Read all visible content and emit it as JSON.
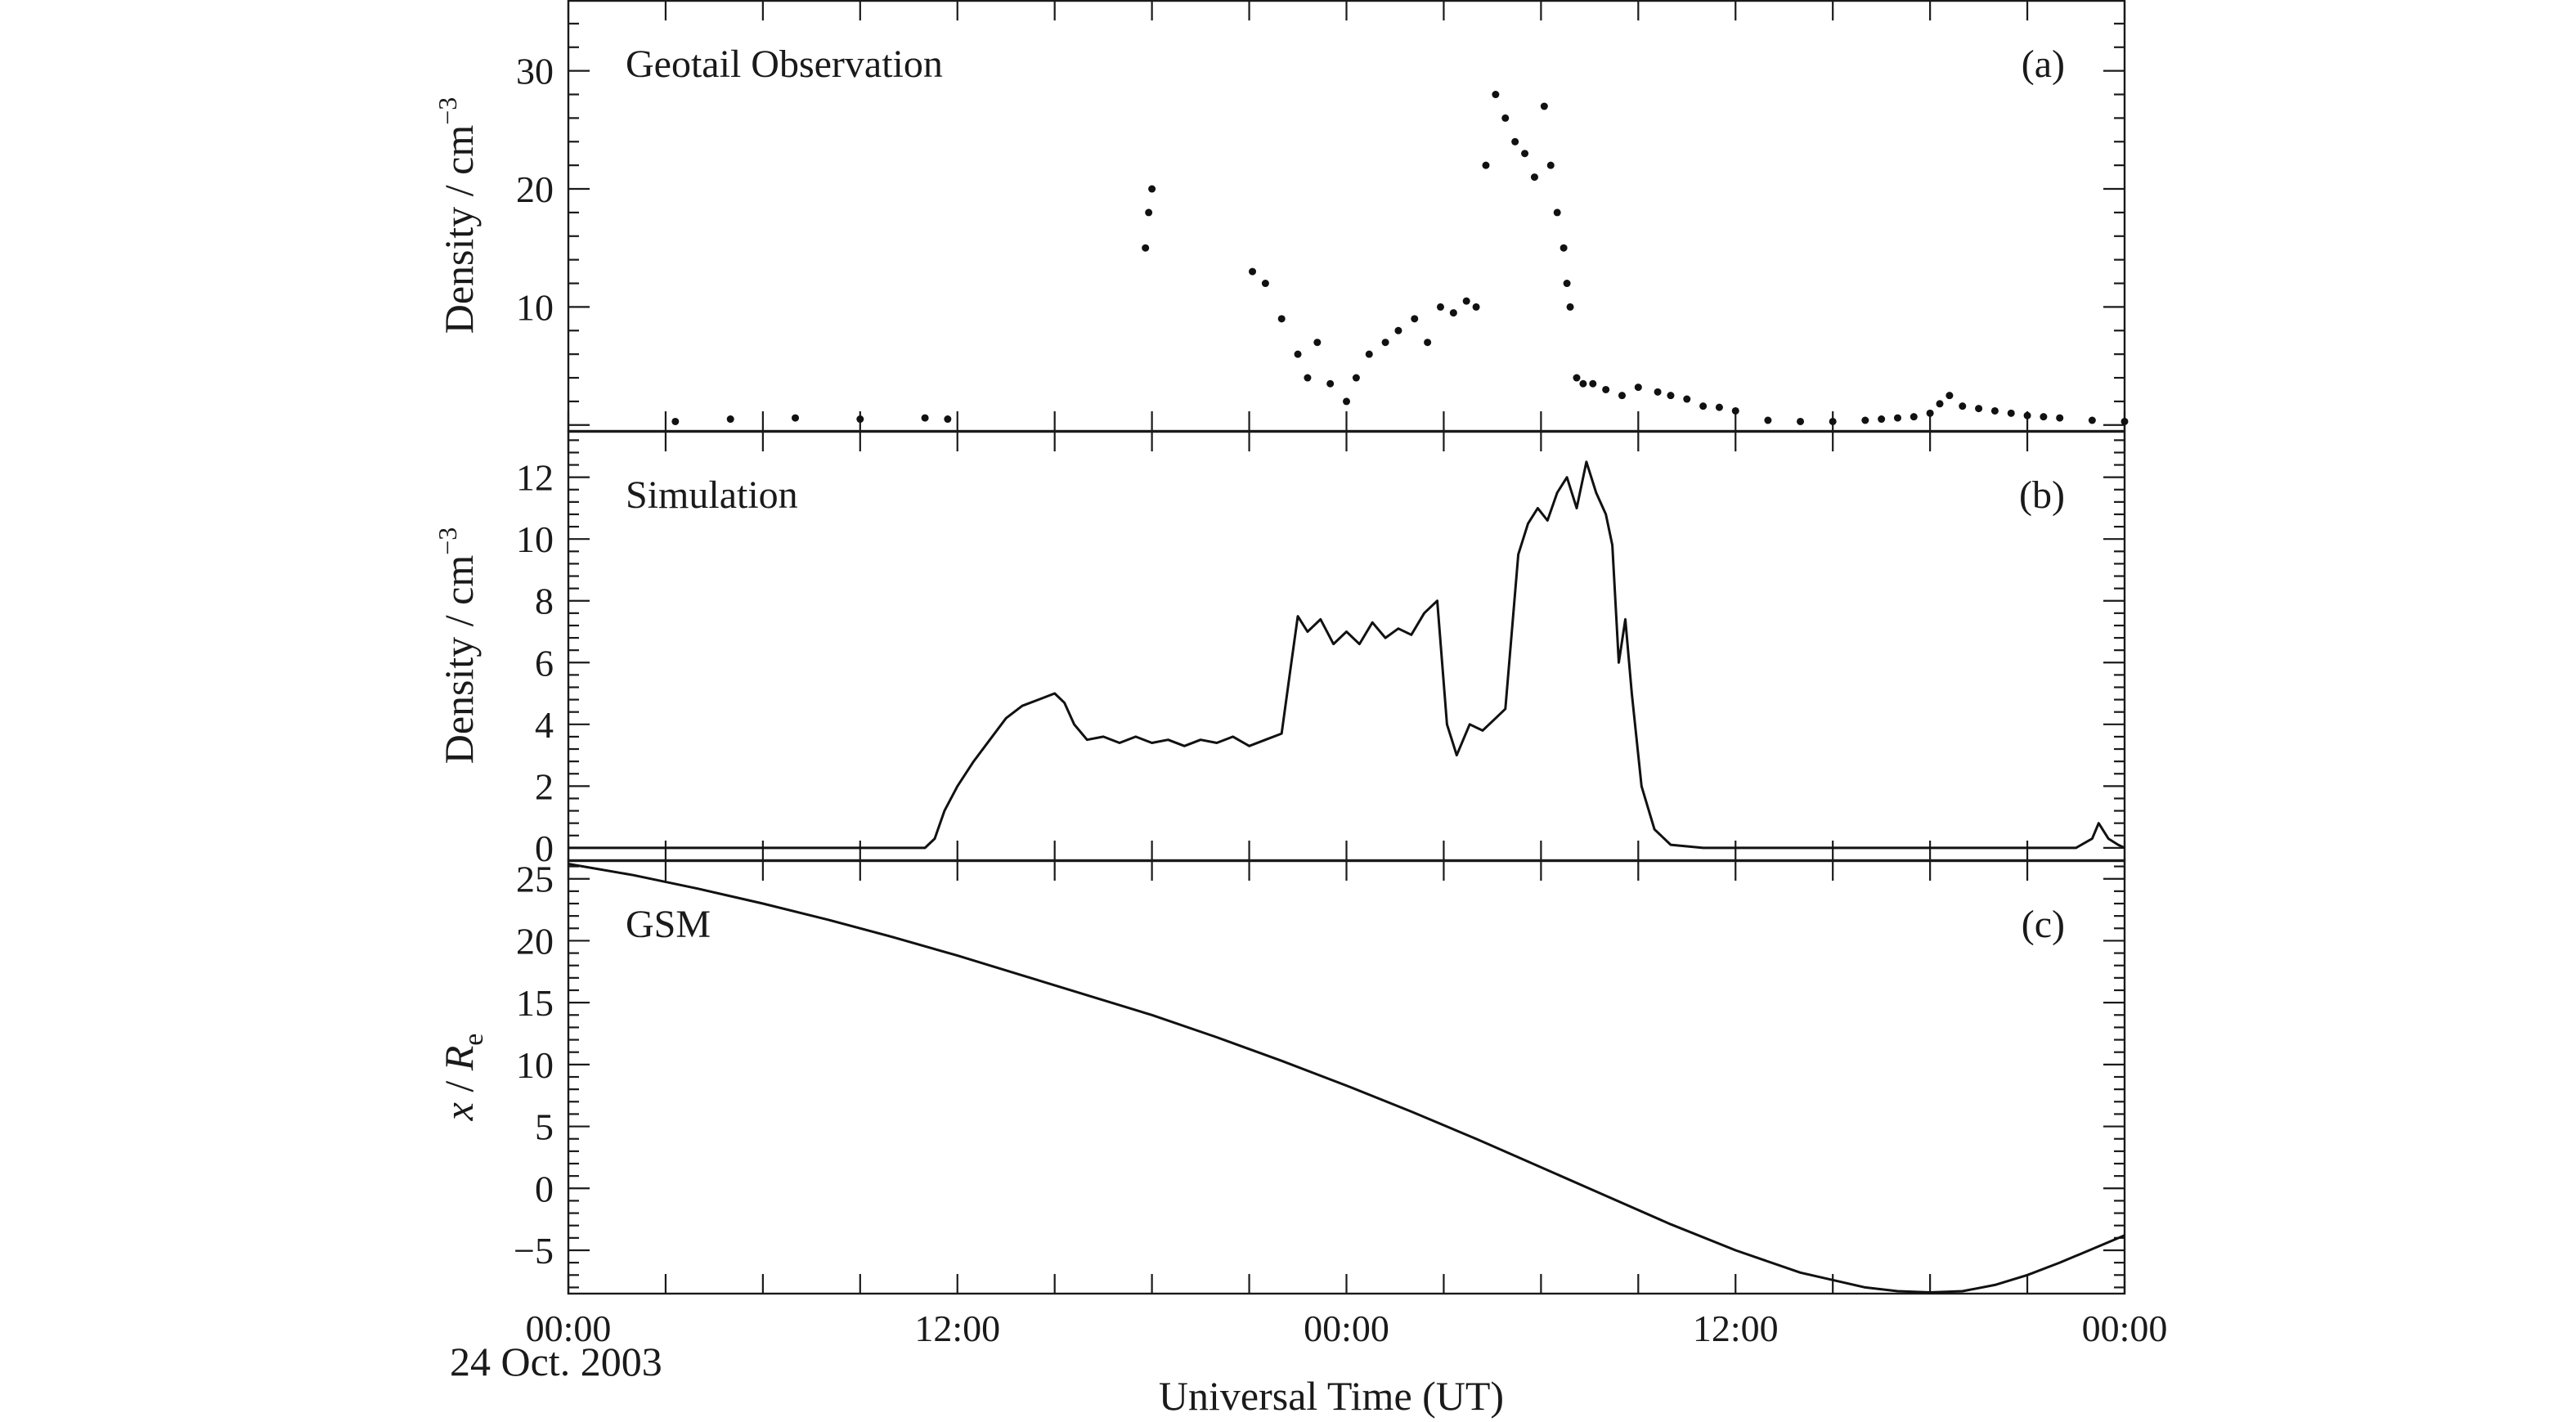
{
  "chart_data": [
    {
      "type": "scatter",
      "panel": "(a)",
      "title": "Geotail Observation",
      "xlabel": "Universal Time (UT)",
      "ylabel": "Density / cm",
      "ylabel_sup": "−3",
      "xlim": [
        0,
        48
      ],
      "ylim": [
        -0.5,
        36
      ],
      "yticks": [
        "10",
        "20",
        "30"
      ],
      "ytick_values": [
        10,
        20,
        30
      ],
      "x_tick_values": [
        0,
        3,
        6,
        9,
        12,
        15,
        18,
        21,
        24,
        27,
        30,
        33,
        36,
        39,
        42,
        45,
        48
      ],
      "series": [
        {
          "x": [
            3.3,
            5,
            7,
            9,
            11,
            11.7,
            17.8,
            17.9,
            18,
            21.1,
            21.5,
            22,
            22.5,
            22.8,
            23.1,
            23.5,
            24,
            24.3,
            24.7,
            25.2,
            25.6,
            26.1,
            26.5,
            26.9,
            27.3,
            27.7,
            28,
            28.3,
            28.6,
            28.9,
            29.2,
            29.5,
            29.8,
            30.1,
            30.3,
            30.5,
            30.7,
            30.8,
            30.9,
            31.1,
            31.3,
            31.6,
            32,
            32.5,
            33,
            33.6,
            34,
            34.5,
            35,
            35.5,
            36,
            37,
            38,
            39,
            40,
            40.5,
            41,
            41.5,
            42,
            42.3,
            42.6,
            43,
            43.5,
            44,
            44.5,
            45,
            45.5,
            46,
            47,
            48
          ],
          "y": [
            0.3,
            0.5,
            0.6,
            0.5,
            0.6,
            0.5,
            15,
            18,
            20,
            13,
            12,
            9,
            6,
            4,
            7,
            3.5,
            2,
            4,
            6,
            7,
            8,
            9,
            7,
            10,
            9.5,
            10.5,
            10,
            22,
            28,
            26,
            24,
            23,
            21,
            27,
            22,
            18,
            15,
            12,
            10,
            4,
            3.5,
            3.5,
            3,
            2.5,
            3.2,
            2.8,
            2.5,
            2.2,
            1.6,
            1.5,
            1.2,
            0.4,
            0.3,
            0.3,
            0.4,
            0.5,
            0.6,
            0.7,
            1,
            1.8,
            2.5,
            1.6,
            1.4,
            1.2,
            1,
            0.8,
            0.7,
            0.6,
            0.4,
            0.3
          ]
        }
      ]
    },
    {
      "type": "line",
      "panel": "(b)",
      "title": "Simulation",
      "xlabel": "Universal Time (UT)",
      "ylabel": "Density / cm",
      "ylabel_sup": "−3",
      "xlim": [
        0,
        48
      ],
      "ylim": [
        -0.4,
        13.5
      ],
      "yticks": [
        "0",
        "2",
        "4",
        "6",
        "8",
        "10",
        "12"
      ],
      "ytick_values": [
        0,
        2,
        4,
        6,
        8,
        10,
        12
      ],
      "x_tick_values": [
        0,
        3,
        6,
        9,
        12,
        15,
        18,
        21,
        24,
        27,
        30,
        33,
        36,
        39,
        42,
        45,
        48
      ],
      "series": [
        {
          "x": [
            0,
            11,
            11.3,
            11.6,
            12,
            12.5,
            13,
            13.5,
            14,
            14.5,
            15,
            15.3,
            15.6,
            16,
            16.5,
            17,
            17.5,
            18,
            18.5,
            19,
            19.5,
            20,
            20.5,
            21,
            21.5,
            22,
            22.3,
            22.5,
            22.8,
            23.2,
            23.6,
            24,
            24.4,
            24.8,
            25.2,
            25.6,
            26,
            26.4,
            26.8,
            27.1,
            27.4,
            27.8,
            28.2,
            28.6,
            28.9,
            29.1,
            29.3,
            29.6,
            29.9,
            30.2,
            30.5,
            30.8,
            31.1,
            31.4,
            31.7,
            32,
            32.2,
            32.4,
            32.6,
            32.8,
            33.1,
            33.5,
            34,
            35,
            36,
            40,
            45,
            46.5,
            47,
            47.2,
            47.5,
            47.8,
            48
          ],
          "y": [
            0,
            0,
            0.3,
            1.2,
            2,
            2.8,
            3.5,
            4.2,
            4.6,
            4.8,
            5,
            4.7,
            4,
            3.5,
            3.6,
            3.4,
            3.6,
            3.4,
            3.5,
            3.3,
            3.5,
            3.4,
            3.6,
            3.3,
            3.5,
            3.7,
            6,
            7.5,
            7,
            7.4,
            6.6,
            7,
            6.6,
            7.3,
            6.8,
            7.1,
            6.9,
            7.6,
            8,
            4,
            3,
            4,
            3.8,
            4.2,
            4.5,
            7,
            9.5,
            10.5,
            11,
            10.6,
            11.5,
            12,
            11,
            12.5,
            11.5,
            10.8,
            9.8,
            6,
            7.4,
            5,
            2,
            0.6,
            0.1,
            0,
            0,
            0,
            0,
            0,
            0.3,
            0.8,
            0.3,
            0.1,
            0
          ]
        }
      ]
    },
    {
      "type": "line",
      "panel": "(c)",
      "title": "GSM",
      "xlabel": "Universal Time (UT)",
      "ylabel": "x / R",
      "ylabel_sub": "e",
      "xlim": [
        0,
        48
      ],
      "ylim": [
        -8.5,
        26.5
      ],
      "yticks": [
        "−5",
        "0",
        "5",
        "10",
        "15",
        "20",
        "25"
      ],
      "ytick_values": [
        -5,
        0,
        5,
        10,
        15,
        20,
        25
      ],
      "x_tick_values": [
        0,
        3,
        6,
        9,
        12,
        15,
        18,
        21,
        24,
        27,
        30,
        33,
        36,
        39,
        42,
        45,
        48
      ],
      "series": [
        {
          "x": [
            0,
            2,
            4,
            6,
            8,
            10,
            12,
            14,
            16,
            18,
            20,
            22,
            24,
            26,
            28,
            30,
            32,
            34,
            36,
            38,
            40,
            41,
            42,
            43,
            44,
            45,
            46,
            47,
            48
          ],
          "y": [
            26.2,
            25.3,
            24.2,
            23,
            21.7,
            20.3,
            18.8,
            17.2,
            15.6,
            14,
            12.2,
            10.3,
            8.3,
            6.2,
            4,
            1.7,
            -0.6,
            -2.9,
            -5,
            -6.8,
            -8,
            -8.3,
            -8.4,
            -8.3,
            -7.8,
            -7,
            -6,
            -4.9,
            -3.8
          ]
        }
      ]
    }
  ],
  "x_axis": {
    "tick_labels": [
      "00:00",
      "12:00",
      "00:00",
      "12:00",
      "00:00"
    ],
    "tick_label_values": [
      0,
      12,
      24,
      36,
      48
    ],
    "date_label": "24 Oct. 2003",
    "label": "Universal Time (UT)"
  }
}
